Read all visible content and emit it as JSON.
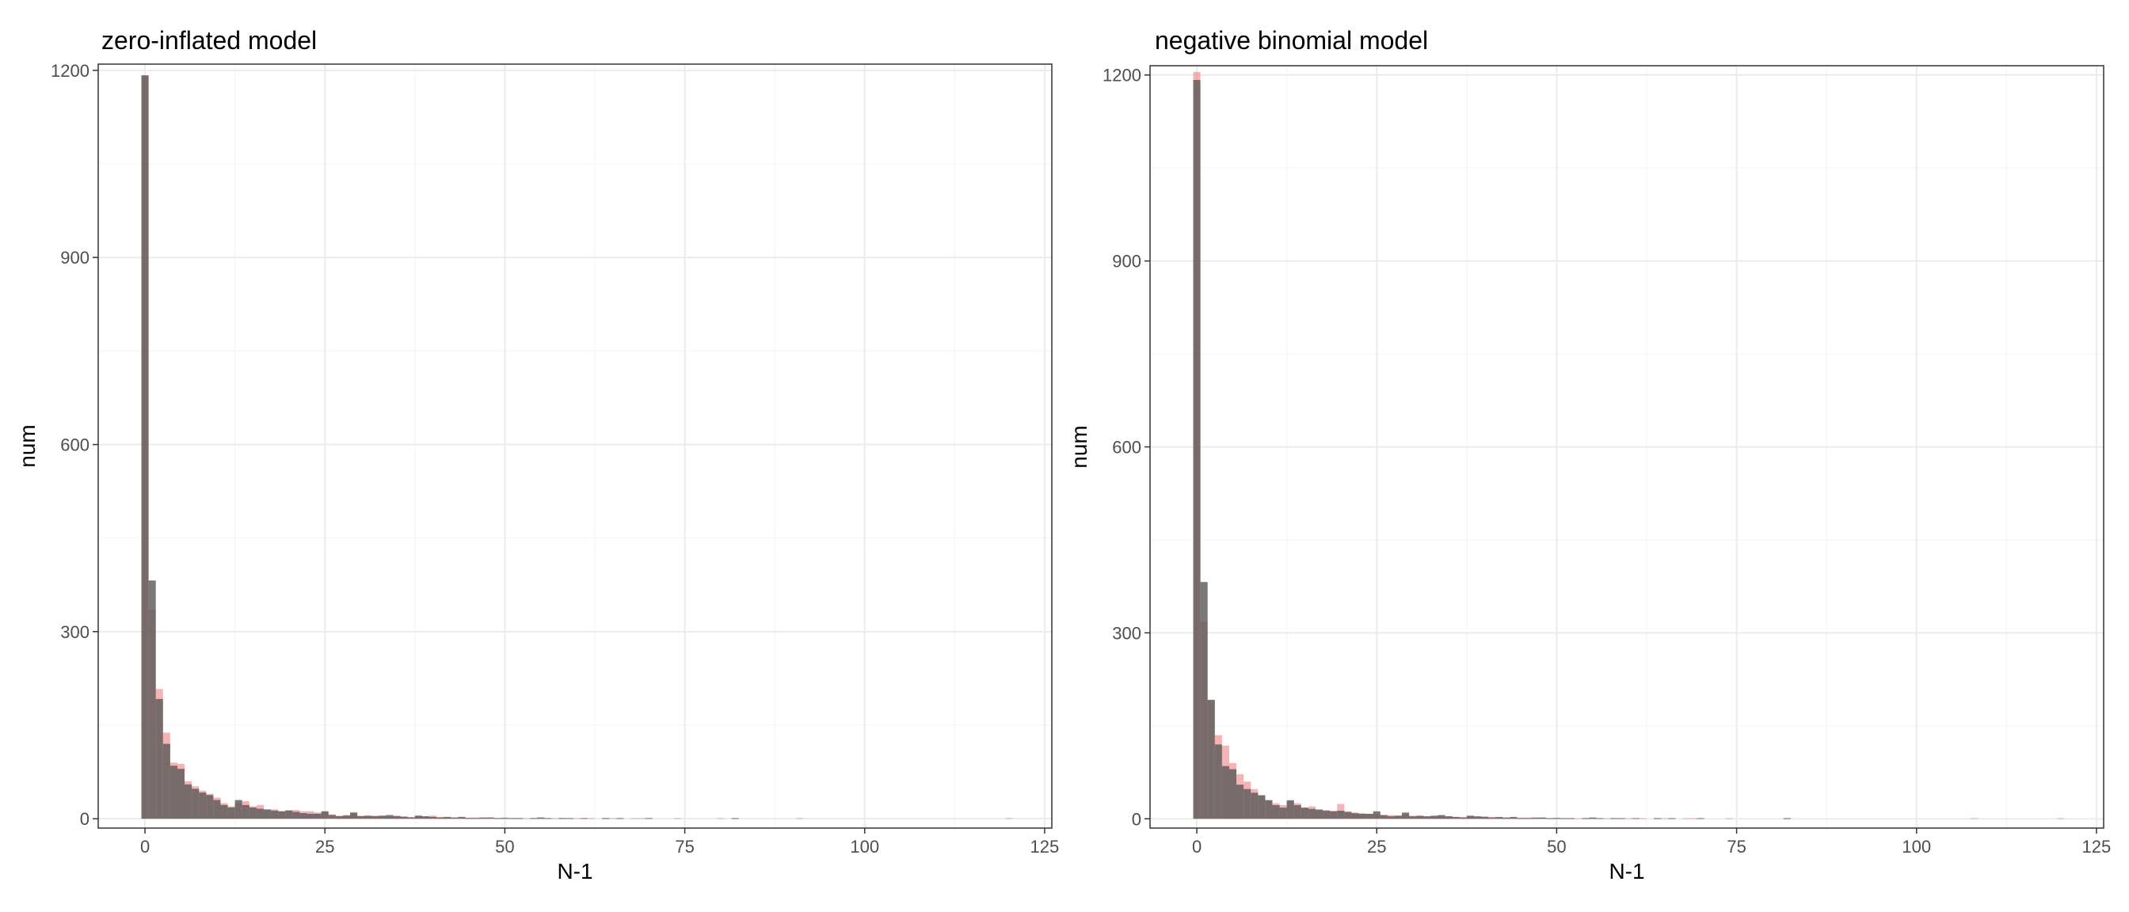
{
  "colors": {
    "background": "#ffffff",
    "panel_border": "#333333",
    "grid_major": "#ebebeb",
    "grid_minor": "#f5f5f5",
    "observed_fill": "#f08080",
    "simulated_fill": "#595959",
    "tick_text": "#4d4d4d"
  },
  "chart_data": [
    {
      "type": "bar",
      "title": "zero-inflated model",
      "xlabel": "N-1",
      "ylabel": "num",
      "xlim": [
        -6.5,
        126
      ],
      "ylim": [
        -15,
        1210
      ],
      "xticks": [
        0,
        25,
        50,
        75,
        100,
        125
      ],
      "yticks": [
        0,
        300,
        600,
        900,
        1200
      ],
      "grid": true,
      "series": [
        {
          "values": [
            1192,
            335,
            208,
            138,
            90,
            88,
            60,
            52,
            45,
            40,
            34,
            25,
            20,
            25,
            28,
            20,
            22,
            14,
            15,
            12,
            14,
            14,
            12,
            12,
            10,
            11,
            7,
            5,
            6,
            9,
            5,
            4,
            5,
            4,
            4,
            5,
            4,
            3,
            4,
            3,
            5,
            3,
            2,
            2,
            2,
            2,
            2,
            1,
            2,
            1,
            2,
            1,
            1,
            1,
            1,
            1,
            0,
            1,
            1,
            0,
            1,
            0,
            1,
            0,
            1,
            1,
            0,
            0,
            1,
            1,
            0,
            0,
            0,
            0,
            1,
            0,
            0,
            0,
            0,
            0,
            1,
            0,
            0,
            0,
            0,
            0,
            0,
            0,
            0,
            0,
            0,
            1,
            0,
            0,
            0,
            0,
            0,
            0,
            0,
            0,
            0,
            0,
            0,
            0,
            0,
            0,
            0,
            0,
            0,
            0,
            0,
            0,
            0,
            0,
            0,
            0,
            0,
            0,
            0,
            0,
            1
          ]
        },
        {
          "values": [
            1192,
            382,
            192,
            120,
            85,
            80,
            55,
            48,
            42,
            38,
            30,
            22,
            18,
            30,
            22,
            18,
            16,
            15,
            13,
            12,
            13,
            11,
            9,
            8,
            8,
            12,
            6,
            4,
            5,
            10,
            4,
            5,
            4,
            5,
            6,
            4,
            3,
            2,
            5,
            4,
            3,
            2,
            3,
            2,
            3,
            1,
            1,
            2,
            2,
            1,
            1,
            1,
            1,
            0,
            1,
            2,
            1,
            0,
            1,
            1,
            0,
            1,
            0,
            0,
            1,
            0,
            1,
            0,
            0,
            0,
            1,
            0,
            0,
            0,
            0,
            0,
            0,
            0,
            0,
            0,
            0,
            0,
            1,
            0,
            0,
            0,
            0,
            0,
            0,
            0,
            0,
            0,
            0,
            0,
            0,
            0,
            0,
            0,
            0,
            0,
            0,
            0,
            0,
            0,
            0,
            0,
            0,
            0,
            0,
            0,
            0,
            0,
            0,
            0,
            0,
            0,
            0,
            0,
            0,
            0,
            0
          ]
        }
      ]
    },
    {
      "type": "bar",
      "title": "negative binomial model",
      "xlabel": "N-1",
      "ylabel": "num",
      "xlim": [
        -6.5,
        126
      ],
      "ylim": [
        -15,
        1215
      ],
      "xticks": [
        0,
        25,
        50,
        75,
        100,
        125
      ],
      "yticks": [
        0,
        300,
        600,
        900,
        1200
      ],
      "grid": true,
      "series": [
        {
          "values": [
            1205,
            318,
            190,
            135,
            118,
            90,
            72,
            60,
            48,
            38,
            30,
            25,
            22,
            28,
            25,
            18,
            20,
            14,
            14,
            13,
            24,
            12,
            10,
            9,
            8,
            8,
            6,
            6,
            5,
            7,
            5,
            4,
            4,
            4,
            5,
            4,
            3,
            3,
            4,
            3,
            4,
            3,
            2,
            2,
            2,
            2,
            2,
            1,
            2,
            1,
            2,
            1,
            1,
            1,
            1,
            1,
            0,
            1,
            1,
            0,
            1,
            0,
            1,
            0,
            1,
            1,
            0,
            0,
            1,
            1,
            0,
            0,
            0,
            0,
            1,
            0,
            0,
            0,
            0,
            0,
            0,
            0,
            1,
            0,
            0,
            0,
            0,
            0,
            0,
            0,
            0,
            0,
            0,
            0,
            0,
            0,
            0,
            0,
            0,
            0,
            0,
            0,
            0,
            0,
            0,
            0,
            0,
            0,
            1,
            0,
            0,
            0,
            0,
            0,
            0,
            0,
            0,
            0,
            0,
            0,
            1
          ]
        },
        {
          "values": [
            1192,
            382,
            192,
            120,
            85,
            80,
            55,
            48,
            42,
            38,
            30,
            22,
            18,
            30,
            22,
            18,
            16,
            15,
            13,
            12,
            13,
            11,
            9,
            8,
            8,
            12,
            6,
            4,
            5,
            10,
            4,
            5,
            4,
            5,
            6,
            4,
            3,
            2,
            5,
            4,
            3,
            2,
            3,
            2,
            3,
            1,
            1,
            2,
            2,
            1,
            1,
            1,
            1,
            0,
            1,
            2,
            1,
            0,
            1,
            1,
            0,
            1,
            0,
            0,
            1,
            0,
            1,
            0,
            0,
            0,
            1,
            0,
            0,
            0,
            0,
            0,
            0,
            0,
            0,
            0,
            0,
            0,
            1,
            0,
            0,
            0,
            0,
            0,
            0,
            0,
            0,
            0,
            0,
            0,
            0,
            0,
            0,
            0,
            0,
            0,
            0,
            0,
            0,
            0,
            0,
            0,
            0,
            0,
            0,
            0,
            0,
            0,
            0,
            0,
            0,
            0,
            0,
            0,
            0,
            0,
            0
          ]
        }
      ]
    }
  ]
}
